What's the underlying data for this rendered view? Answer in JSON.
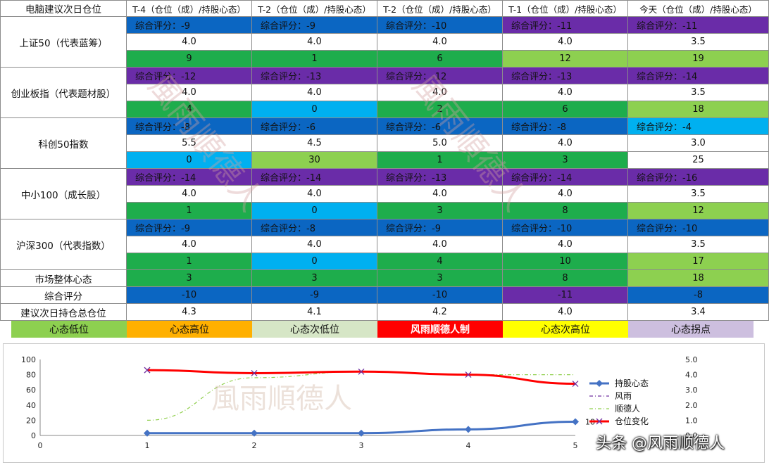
{
  "header": {
    "corner": "电脑建议次日仓位",
    "columns": [
      "T-4（仓位（成）/持股心态）",
      "T-2（仓位（成）/持股心态）",
      "T-2（仓位（成）/持股心态）",
      "T-1（仓位（成）/持股心态）",
      "今天（仓位（成）/持股心态）"
    ]
  },
  "groups": [
    {
      "name": "上证50（代表蓝筹）",
      "score": [
        "综合评分：-9",
        "综合评分：-9",
        "综合评分：-10",
        "综合评分：-11",
        "综合评分：-11"
      ],
      "position": [
        "4.0",
        "4.0",
        "4.0",
        "4.0",
        "3.5"
      ],
      "mood": [
        "9",
        "1",
        "6",
        "12",
        "19"
      ],
      "score_colors": [
        "#0b66c2",
        "#0b66c2",
        "#0b66c2",
        "#6a2ca8",
        "#6a2ca8"
      ],
      "mood_colors": [
        "#1ead4c",
        "#1ead4c",
        "#1ead4c",
        "#8dd050",
        "#8dd050"
      ]
    },
    {
      "name": "创业板指（代表题材股）",
      "score": [
        "综合评分：-12",
        "综合评分：-13",
        "综合评分：-12",
        "综合评分：-13",
        "综合评分：-14"
      ],
      "position": [
        "4.0",
        "4.0",
        "4.0",
        "4.0",
        "3.5"
      ],
      "mood": [
        "4",
        "0",
        "2",
        "6",
        "18"
      ],
      "score_colors": [
        "#6a2ca8",
        "#6a2ca8",
        "#6a2ca8",
        "#6a2ca8",
        "#6a2ca8"
      ],
      "mood_colors": [
        "#1ead4c",
        "#00b0f0",
        "#1ead4c",
        "#1ead4c",
        "#8dd050"
      ]
    },
    {
      "name": "科创50指数",
      "score": [
        "综合评分：-8",
        "综合评分：-6",
        "综合评分：-6",
        "综合评分：-8",
        "综合评分：-4"
      ],
      "position": [
        "5.5",
        "4.5",
        "5.0",
        "4.0",
        "3.0"
      ],
      "mood": [
        "0",
        "30",
        "1",
        "3",
        "25"
      ],
      "score_colors": [
        "#0b66c2",
        "#0b66c2",
        "#0b66c2",
        "#0b66c2",
        "#00b0f0"
      ],
      "mood_colors": [
        "#00b0f0",
        "#8dd050",
        "#1ead4c",
        "#1ead4c",
        "#ffffff"
      ]
    },
    {
      "name": "中小100（成长股）",
      "score": [
        "综合评分：-14",
        "综合评分：-14",
        "综合评分：-13",
        "综合评分：-14",
        "综合评分：-16"
      ],
      "position": [
        "4.0",
        "4.0",
        "4.0",
        "4.0",
        "3.5"
      ],
      "mood": [
        "1",
        "0",
        "3",
        "8",
        "12"
      ],
      "score_colors": [
        "#6a2ca8",
        "#6a2ca8",
        "#6a2ca8",
        "#6a2ca8",
        "#6a2ca8"
      ],
      "mood_colors": [
        "#1ead4c",
        "#00b0f0",
        "#1ead4c",
        "#1ead4c",
        "#8dd050"
      ]
    },
    {
      "name": "沪深300（代表指数）",
      "score": [
        "综合评分：-9",
        "综合评分：-8",
        "综合评分：-9",
        "综合评分：-10",
        "综合评分：-10"
      ],
      "position": [
        "4.0",
        "4.0",
        "4.0",
        "4.0",
        "3.5"
      ],
      "mood": [
        "1",
        "0",
        "4",
        "10",
        "17"
      ],
      "score_colors": [
        "#0b66c2",
        "#0b66c2",
        "#0b66c2",
        "#0b66c2",
        "#0b66c2"
      ],
      "mood_colors": [
        "#1ead4c",
        "#00b0f0",
        "#1ead4c",
        "#1ead4c",
        "#8dd050"
      ]
    }
  ],
  "summary": [
    {
      "name": "市场整体心态",
      "values": [
        "3",
        "3",
        "3",
        "8",
        "18"
      ],
      "colors": [
        "#1ead4c",
        "#1ead4c",
        "#1ead4c",
        "#1ead4c",
        "#8dd050"
      ]
    },
    {
      "name": "综合评分",
      "values": [
        "-10",
        "-9",
        "-10",
        "-11",
        "-8"
      ],
      "colors": [
        "#0b66c2",
        "#0b66c2",
        "#0b66c2",
        "#6a2ca8",
        "#0b66c2"
      ]
    },
    {
      "name": "建议次日持仓总仓位",
      "values": [
        "4.3",
        "4.1",
        "4.2",
        "4.0",
        "3.4"
      ],
      "colors": [
        "#ffffff",
        "#ffffff",
        "#ffffff",
        "#ffffff",
        "#ffffff"
      ]
    }
  ],
  "color_legend": [
    {
      "label": "心态低位",
      "color": "#8dd050"
    },
    {
      "label": "心态高位",
      "color": "#ffb000"
    },
    {
      "label": "心态次低位",
      "color": "#d6e6c6"
    },
    {
      "label": "风雨顺德人制",
      "color": "#ff0000"
    },
    {
      "label": "心态次高位",
      "color": "#ffff00"
    },
    {
      "label": "心态拐点",
      "color": "#cdbfdf"
    }
  ],
  "watermarks": [
    "風雨順德人",
    "風雨順德人",
    "風雨順德人"
  ],
  "brand": "头条 @风雨顺德人",
  "chart_data": {
    "type": "line",
    "x": [
      1,
      2,
      3,
      4,
      5
    ],
    "xlim": [
      0,
      5
    ],
    "ylim": [
      0,
      100
    ],
    "y2lim": [
      0,
      5
    ],
    "y_ticks": [
      "0",
      "20",
      "40",
      "60",
      "80",
      "100"
    ],
    "y2_ticks": [
      "0.0",
      "1.0",
      "2.0",
      "3.0",
      "4.0",
      "5.0"
    ],
    "x_ticks": [
      "0",
      "1",
      "2",
      "3",
      "4",
      "5"
    ],
    "series": [
      {
        "name": "持股心态",
        "axis": "left",
        "values": [
          3,
          3,
          3,
          8,
          18
        ],
        "color": "#4472c4",
        "style": "solid-diamond",
        "end_label": "18"
      },
      {
        "name": "风雨",
        "axis": "left",
        "values": [
          null,
          null,
          null,
          null,
          null
        ],
        "color": "#7030a0",
        "style": "dash-dot"
      },
      {
        "name": "顺德人",
        "axis": "right",
        "values": [
          1.0,
          3.8,
          4.2,
          4.0,
          4.0
        ],
        "color": "#92d050",
        "style": "dash-dot"
      },
      {
        "name": "仓位变化",
        "axis": "right",
        "values": [
          4.3,
          4.1,
          4.2,
          4.0,
          3.4
        ],
        "color": "#ff0000",
        "style": "solid-x"
      }
    ],
    "legend": "right"
  }
}
